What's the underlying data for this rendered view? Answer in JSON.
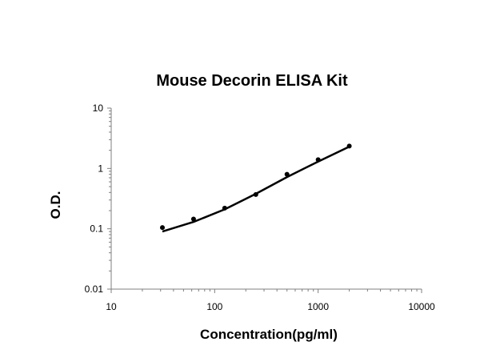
{
  "chart_data": {
    "type": "scatter",
    "title": "Mouse Decorin ELISA Kit",
    "xlabel": "Concentration(pg/ml)",
    "ylabel": "O.D.",
    "xscale": "log",
    "yscale": "log",
    "xlim": [
      10,
      10000
    ],
    "ylim": [
      0.01,
      10
    ],
    "x_ticks": [
      "10",
      "100",
      "1000",
      "10000"
    ],
    "y_ticks": [
      "0.01",
      "0.1",
      "1",
      "10"
    ],
    "grid": false,
    "legend": "none",
    "series": [
      {
        "points": [
          {
            "x": 31.25,
            "y": 0.105
          },
          {
            "x": 62.5,
            "y": 0.145
          },
          {
            "x": 125,
            "y": 0.22
          },
          {
            "x": 250,
            "y": 0.37
          },
          {
            "x": 500,
            "y": 0.8
          },
          {
            "x": 1000,
            "y": 1.4
          },
          {
            "x": 2000,
            "y": 2.35
          }
        ],
        "fit_curve": {
          "x": [
            31.25,
            62.5,
            125,
            250,
            500,
            1000,
            2000
          ],
          "y": [
            0.09,
            0.13,
            0.21,
            0.38,
            0.72,
            1.3,
            2.3
          ]
        },
        "color": "#000000"
      }
    ]
  }
}
